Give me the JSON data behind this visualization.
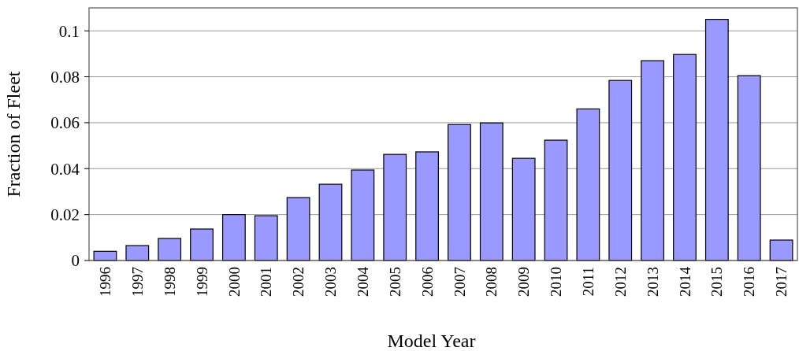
{
  "chart_data": {
    "type": "bar",
    "xlabel": "Model Year",
    "ylabel": "Fraction of Fleet",
    "categories": [
      "1996",
      "1997",
      "1998",
      "1999",
      "2000",
      "2001",
      "2002",
      "2003",
      "2004",
      "2005",
      "2006",
      "2007",
      "2008",
      "2009",
      "2010",
      "2011",
      "2012",
      "2013",
      "2014",
      "2015",
      "2016",
      "2017"
    ],
    "values": [
      0.004,
      0.0065,
      0.0096,
      0.0137,
      0.02,
      0.0195,
      0.0274,
      0.0332,
      0.0394,
      0.0462,
      0.0473,
      0.0592,
      0.0599,
      0.0445,
      0.0524,
      0.066,
      0.0784,
      0.087,
      0.0897,
      0.105,
      0.0805,
      0.0089
    ],
    "color": "#9999ff",
    "ylim": [
      0,
      0.11
    ],
    "yticks": [
      0,
      0.02,
      0.04,
      0.06,
      0.08,
      0.1
    ],
    "grid": "y"
  }
}
